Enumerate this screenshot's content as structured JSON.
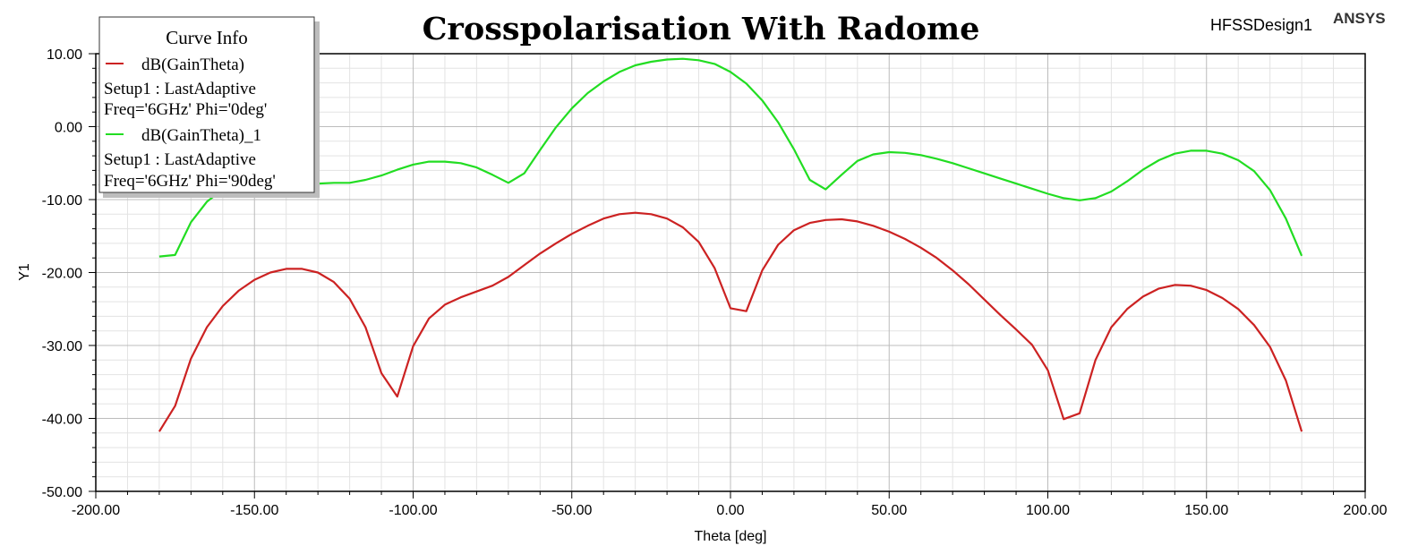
{
  "header": {
    "design_name": "HFSSDesign1",
    "brand": "ANSYS"
  },
  "legend": {
    "title": "Curve Info",
    "entries": [
      {
        "name": "dB(GainTheta)",
        "line2": "Setup1 : LastAdaptive",
        "line3": "Freq='6GHz' Phi='0deg'",
        "color": "#cc2222"
      },
      {
        "name": "dB(GainTheta)_1",
        "line2": "Setup1 : LastAdaptive",
        "line3": "Freq='6GHz' Phi='90deg'",
        "color": "#22dd22"
      }
    ]
  },
  "chart_data": {
    "type": "line",
    "title": "Crosspolarisation With Radome",
    "xlabel": "Theta [deg]",
    "ylabel": "Y1",
    "xlim": [
      -200,
      200
    ],
    "ylim": [
      -50,
      10
    ],
    "x_ticks": [
      "-200.00",
      "-150.00",
      "-100.00",
      "-50.00",
      "0.00",
      "50.00",
      "100.00",
      "150.00",
      "200.00"
    ],
    "y_ticks": [
      "10.00",
      "0.00",
      "-10.00",
      "-20.00",
      "-30.00",
      "-40.00",
      "-50.00"
    ],
    "grid": true,
    "legend_position": "top-left",
    "series": [
      {
        "name": "dB(GainTheta)",
        "color": "#cc2222",
        "x": [
          -180,
          -175,
          -170,
          -165,
          -160,
          -155,
          -150,
          -145,
          -140,
          -135,
          -130,
          -125,
          -120,
          -115,
          -110,
          -105,
          -100,
          -95,
          -90,
          -85,
          -80,
          -75,
          -70,
          -65,
          -60,
          -55,
          -50,
          -45,
          -40,
          -35,
          -30,
          -25,
          -20,
          -15,
          -10,
          -5,
          0,
          5,
          10,
          15,
          20,
          25,
          30,
          35,
          40,
          45,
          50,
          55,
          60,
          65,
          70,
          75,
          80,
          85,
          90,
          95,
          100,
          105,
          110,
          115,
          120,
          125,
          130,
          135,
          140,
          145,
          150,
          155,
          160,
          165,
          170,
          175,
          180
        ],
        "y": [
          -41.8,
          -38.3,
          -31.8,
          -27.5,
          -24.6,
          -22.5,
          -21.0,
          -20.0,
          -19.5,
          -19.5,
          -20.0,
          -21.3,
          -23.6,
          -27.5,
          -33.8,
          -37.0,
          -30.1,
          -26.3,
          -24.4,
          -23.4,
          -22.6,
          -21.8,
          -20.6,
          -19.0,
          -17.4,
          -16.0,
          -14.7,
          -13.6,
          -12.6,
          -12.0,
          -11.8,
          -12.0,
          -12.6,
          -13.8,
          -15.8,
          -19.4,
          -24.9,
          -25.3,
          -19.7,
          -16.2,
          -14.2,
          -13.2,
          -12.8,
          -12.7,
          -13.0,
          -13.6,
          -14.4,
          -15.4,
          -16.6,
          -18.0,
          -19.7,
          -21.6,
          -23.7,
          -25.8,
          -27.8,
          -29.9,
          -33.4,
          -40.1,
          -39.3,
          -32.0,
          -27.5,
          -25.0,
          -23.3,
          -22.2,
          -21.7,
          -21.8,
          -22.4,
          -23.5,
          -25.0,
          -27.2,
          -30.2,
          -34.8,
          -41.8
        ]
      },
      {
        "name": "dB(GainTheta)_1",
        "color": "#22dd22",
        "x": [
          -180,
          -175,
          -170,
          -165,
          -160,
          -155,
          -150,
          -145,
          -140,
          -135,
          -130,
          -125,
          -120,
          -115,
          -110,
          -105,
          -100,
          -95,
          -90,
          -85,
          -80,
          -75,
          -70,
          -65,
          -60,
          -55,
          -50,
          -45,
          -40,
          -35,
          -30,
          -25,
          -20,
          -15,
          -10,
          -5,
          0,
          5,
          10,
          15,
          20,
          25,
          30,
          35,
          40,
          45,
          50,
          55,
          60,
          65,
          70,
          75,
          80,
          85,
          90,
          95,
          100,
          105,
          110,
          115,
          120,
          125,
          130,
          135,
          140,
          145,
          150,
          155,
          160,
          165,
          170,
          175,
          180
        ],
        "y": [
          -17.8,
          -17.6,
          -13.1,
          -10.3,
          -8.6,
          -7.6,
          -7.2,
          -7.3,
          -7.6,
          -7.8,
          -7.8,
          -7.7,
          -7.7,
          -7.3,
          -6.7,
          -5.9,
          -5.2,
          -4.8,
          -4.8,
          -5.0,
          -5.6,
          -6.6,
          -7.7,
          -6.4,
          -3.2,
          -0.1,
          2.5,
          4.6,
          6.2,
          7.5,
          8.4,
          8.9,
          9.2,
          9.3,
          9.1,
          8.6,
          7.5,
          5.9,
          3.6,
          0.6,
          -3.1,
          -7.3,
          -8.6,
          -6.6,
          -4.7,
          -3.8,
          -3.5,
          -3.6,
          -3.9,
          -4.4,
          -5.0,
          -5.7,
          -6.4,
          -7.1,
          -7.8,
          -8.5,
          -9.2,
          -9.8,
          -10.1,
          -9.8,
          -8.9,
          -7.5,
          -5.9,
          -4.6,
          -3.7,
          -3.3,
          -3.3,
          -3.7,
          -4.6,
          -6.1,
          -8.7,
          -12.6,
          -17.7
        ]
      }
    ]
  }
}
